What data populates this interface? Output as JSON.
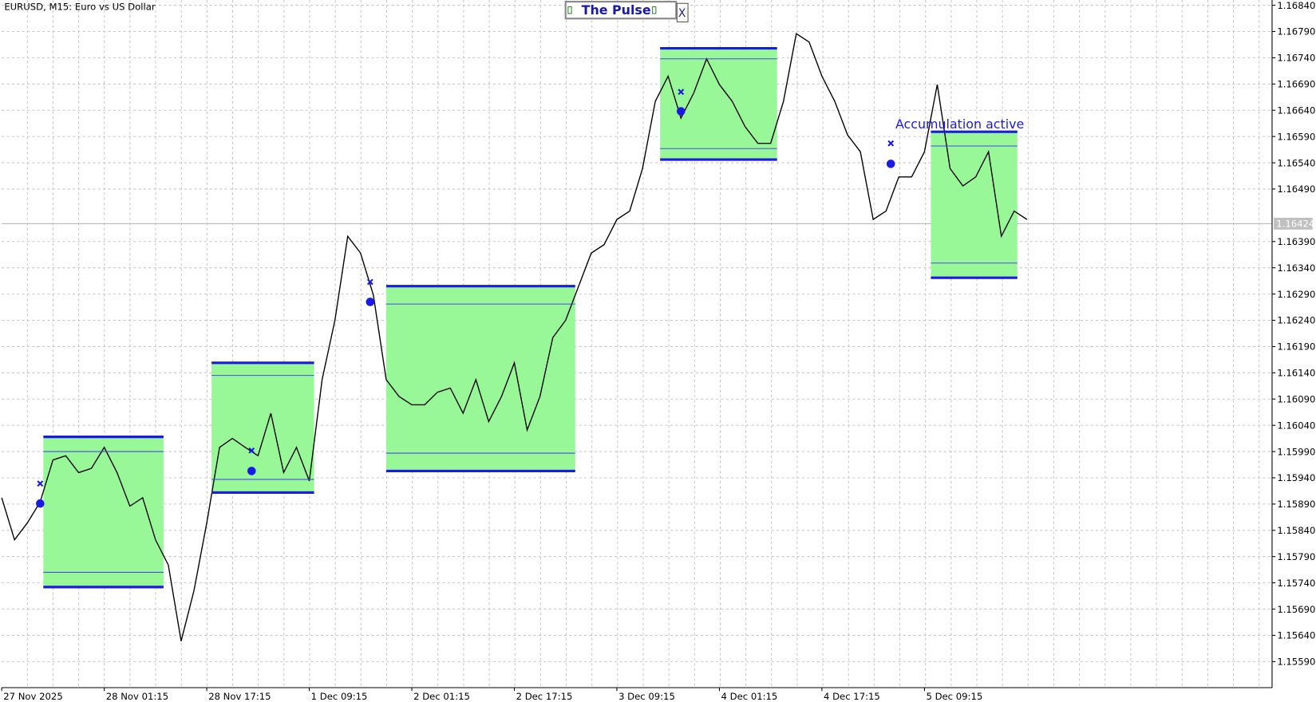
{
  "chart_data": {
    "type": "line",
    "title": "EURUSD, M15:  Euro vs US Dollar",
    "panel_title": "The Pulse",
    "close_button": "X",
    "annotation": "Accumulation active",
    "current_price": {
      "value": 1.16424,
      "label": "1.16424"
    },
    "xlim": [
      0,
      793
    ],
    "ylim": [
      1.1555,
      1.1685
    ],
    "xticks": [
      {
        "value": 0,
        "label": "27 Nov 2025"
      },
      {
        "value": 64,
        "label": "28 Nov 01:15"
      },
      {
        "value": 128,
        "label": "28 Nov 17:15"
      },
      {
        "value": 192,
        "label": "1 Dec 09:15"
      },
      {
        "value": 256,
        "label": "2 Dec 01:15"
      },
      {
        "value": 320,
        "label": "2 Dec 17:15"
      },
      {
        "value": 384,
        "label": "3 Dec 09:15"
      },
      {
        "value": 448,
        "label": "4 Dec 01:15"
      },
      {
        "value": 512,
        "label": "4 Dec 17:15"
      },
      {
        "value": 576,
        "label": "5 Dec 09:15"
      }
    ],
    "yticks": [
      {
        "value": 1.1684,
        "label": "1.16840"
      },
      {
        "value": 1.1679,
        "label": "1.16790"
      },
      {
        "value": 1.1674,
        "label": "1.16740"
      },
      {
        "value": 1.1669,
        "label": "1.16690"
      },
      {
        "value": 1.1664,
        "label": "1.16640"
      },
      {
        "value": 1.1659,
        "label": "1.16590"
      },
      {
        "value": 1.1654,
        "label": "1.16540"
      },
      {
        "value": 1.1649,
        "label": "1.16490"
      },
      {
        "value": 1.1639,
        "label": "1.16390"
      },
      {
        "value": 1.1634,
        "label": "1.16340"
      },
      {
        "value": 1.1629,
        "label": "1.16290"
      },
      {
        "value": 1.1624,
        "label": "1.16240"
      },
      {
        "value": 1.1619,
        "label": "1.16190"
      },
      {
        "value": 1.1614,
        "label": "1.16140"
      },
      {
        "value": 1.1609,
        "label": "1.16090"
      },
      {
        "value": 1.1604,
        "label": "1.16040"
      },
      {
        "value": 1.1599,
        "label": "1.15990"
      },
      {
        "value": 1.1594,
        "label": "1.15940"
      },
      {
        "value": 1.1589,
        "label": "1.15890"
      },
      {
        "value": 1.1584,
        "label": "1.15840"
      },
      {
        "value": 1.1579,
        "label": "1.15790"
      },
      {
        "value": 1.1574,
        "label": "1.15740"
      },
      {
        "value": 1.1569,
        "label": "1.15690"
      },
      {
        "value": 1.1564,
        "label": "1.15640"
      },
      {
        "value": 1.1559,
        "label": "1.15590"
      }
    ],
    "grid": true,
    "series": [
      {
        "name": "EURUSD",
        "color": "#000000",
        "x": [
          0,
          8,
          16,
          24,
          32,
          40,
          48,
          56,
          64,
          72,
          80,
          88,
          96,
          104,
          112,
          120,
          128,
          136,
          144,
          152,
          160,
          168,
          176,
          184,
          192,
          200,
          208,
          216,
          224,
          232,
          240,
          248,
          256,
          264,
          272,
          280,
          288,
          296,
          304,
          312,
          320,
          328,
          336,
          344,
          352,
          360,
          368,
          376,
          384,
          392,
          400,
          408,
          416,
          424,
          432,
          440,
          448,
          456,
          464,
          472,
          480,
          488,
          496,
          504,
          512,
          520,
          528,
          536,
          544,
          552,
          560,
          568,
          576,
          584,
          592,
          600,
          608,
          616,
          624,
          632,
          640
        ],
        "values": [
          1.15902,
          1.15822,
          1.15854,
          1.15894,
          1.15974,
          1.15982,
          1.1595,
          1.15958,
          1.15998,
          1.1595,
          1.15886,
          1.15902,
          1.15822,
          1.15774,
          1.15629,
          1.15725,
          1.15854,
          1.15998,
          1.16015,
          1.15998,
          1.15982,
          1.16063,
          1.1595,
          1.15998,
          1.15934,
          1.16127,
          1.1624,
          1.164,
          1.16368,
          1.16288,
          1.16127,
          1.16095,
          1.16079,
          1.16079,
          1.16103,
          1.16111,
          1.16063,
          1.16127,
          1.16047,
          1.16095,
          1.16159,
          1.16031,
          1.16095,
          1.16207,
          1.1624,
          1.16304,
          1.16368,
          1.16384,
          1.16432,
          1.16448,
          1.16529,
          1.16657,
          1.16705,
          1.16625,
          1.16673,
          1.16738,
          1.16689,
          1.16657,
          1.16609,
          1.16577,
          1.16577,
          1.16657,
          1.16786,
          1.1677,
          1.16705,
          1.16657,
          1.16593,
          1.16561,
          1.16432,
          1.16448,
          1.16513,
          1.16513,
          1.16561,
          1.16689,
          1.16529,
          1.16496,
          1.16513,
          1.16561,
          1.164,
          1.16448,
          1.16432
        ]
      }
    ],
    "zones": [
      {
        "x": [
          26,
          101
        ],
        "top": 1.16018,
        "bottom": 1.15732,
        "upper": 1.1599,
        "lower": 1.1576
      },
      {
        "x": [
          131,
          195
        ],
        "top": 1.16159,
        "bottom": 1.15912,
        "upper": 1.16135,
        "lower": 1.15937
      },
      {
        "x": [
          240,
          358
        ],
        "top": 1.16305,
        "bottom": 1.15953,
        "upper": 1.16271,
        "lower": 1.15987
      },
      {
        "x": [
          411,
          484
        ],
        "top": 1.16758,
        "bottom": 1.16546,
        "upper": 1.16738,
        "lower": 1.16567
      },
      {
        "x": [
          580,
          634
        ],
        "top": 1.16599,
        "bottom": 1.16321,
        "upper": 1.16572,
        "lower": 1.16349
      }
    ],
    "signals": [
      {
        "x": 24,
        "entry": 1.15891,
        "marker": 1.15929
      },
      {
        "x": 156,
        "entry": 1.15953,
        "marker": 1.15992
      },
      {
        "x": 230,
        "entry": 1.16275,
        "marker": 1.16313
      },
      {
        "x": 424,
        "entry": 1.16638,
        "marker": 1.16675
      },
      {
        "x": 555,
        "entry": 1.16538,
        "marker": 1.16577
      }
    ]
  }
}
